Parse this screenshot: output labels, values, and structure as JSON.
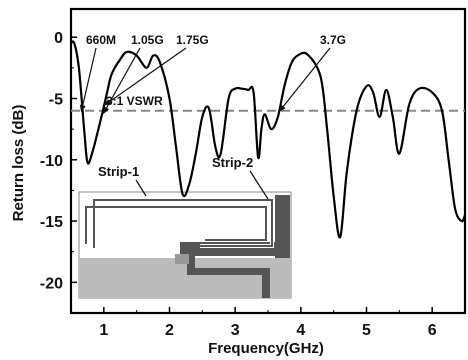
{
  "chart_data": {
    "type": "line",
    "xlabel": "Frequency(GHz)",
    "ylabel": "Return loss (dB)",
    "xlim": [
      0.5,
      6.5
    ],
    "ylim": [
      -22.5,
      2.3
    ],
    "x_ticks": [
      1,
      2,
      3,
      4,
      5,
      6
    ],
    "y_ticks": [
      0,
      -5,
      -10,
      -15,
      -20
    ],
    "grid": false,
    "series": [
      {
        "color": "#000000",
        "x": [
          0.5,
          0.55,
          0.62,
          0.7,
          0.75,
          0.82,
          0.95,
          1.05,
          1.12,
          1.25,
          1.35,
          1.5,
          1.65,
          1.75,
          1.85,
          2.0,
          2.1,
          2.2,
          2.3,
          2.4,
          2.5,
          2.6,
          2.7,
          2.78,
          2.9,
          3.0,
          3.1,
          3.2,
          3.28,
          3.35,
          3.4,
          3.45,
          3.55,
          3.65,
          3.75,
          3.85,
          3.95,
          4.1,
          4.3,
          4.4,
          4.5,
          4.6,
          4.7,
          4.85,
          5.0,
          5.1,
          5.2,
          5.3,
          5.4,
          5.5,
          5.65,
          5.8,
          6.0,
          6.15,
          6.25,
          6.35,
          6.45,
          6.5
        ],
        "y": [
          -0.5,
          -0.5,
          -2.5,
          -7.5,
          -10.2,
          -9.5,
          -6.8,
          -4.5,
          -3.0,
          -1.8,
          -1.2,
          -1.5,
          -2.5,
          -1.5,
          -2.0,
          -5.0,
          -9.0,
          -12.8,
          -12.0,
          -9.5,
          -6.5,
          -5.8,
          -9.0,
          -9.5,
          -5.0,
          -4.2,
          -4.2,
          -4.3,
          -4.5,
          -9.8,
          -7.5,
          -6.3,
          -7.5,
          -6.5,
          -4.0,
          -2.2,
          -1.5,
          -1.4,
          -3.2,
          -7.5,
          -13.0,
          -16.3,
          -11.0,
          -6.0,
          -4.0,
          -4.5,
          -6.5,
          -4.3,
          -6.5,
          -9.5,
          -5.5,
          -4.2,
          -4.5,
          -6.0,
          -10.0,
          -14.0,
          -15.0,
          -14.5
        ]
      }
    ],
    "reference_line": {
      "y": -6,
      "color": "#888888",
      "style": "dashed"
    },
    "annotations": [
      {
        "text": "660M",
        "target_x": 0.66
      },
      {
        "text": "1.05G",
        "target_x": 1.05
      },
      {
        "text": "1.75G",
        "target_x": 1.75
      },
      {
        "text": "3.7G",
        "target_x": 3.7
      },
      {
        "text": "3:1 VSWR"
      }
    ],
    "inset": {
      "labels": [
        "Strip-1",
        "Strip-2"
      ],
      "colors": {
        "ground": "#bbbbbb",
        "strip_dark": "#555555",
        "strip_light": "#ffffff",
        "feed": "#999999"
      }
    }
  }
}
